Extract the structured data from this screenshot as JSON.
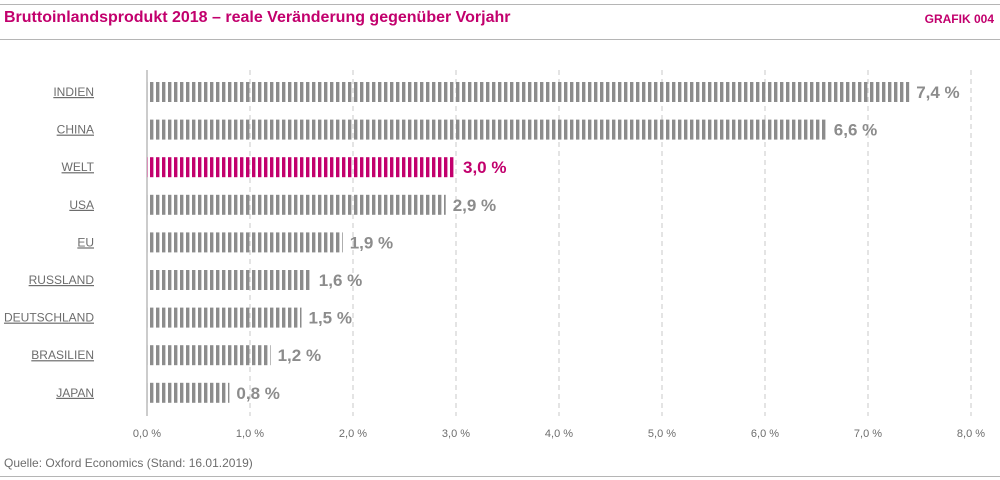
{
  "header": {
    "title": "Bruttoinlandsprodukt 2018 – reale Veränderung gegenüber Vorjahr",
    "graphic_label": "GRAFIK 004"
  },
  "footer": {
    "source": "Quelle: Oxford Economics (Stand: 16.01.2019)"
  },
  "colors": {
    "bar_default": "#8c8c8c",
    "bar_highlight": "#c2006d",
    "label_default": "#8c8c8c",
    "label_highlight": "#c2006d",
    "category_text": "#6d6d6d",
    "grid": "#c8c8c8"
  },
  "chart_data": {
    "type": "bar",
    "orientation": "horizontal",
    "categories": [
      "INDIEN",
      "CHINA",
      "WELT",
      "USA",
      "EU",
      "RUSSLAND",
      "DEUTSCHLAND",
      "BRASILIEN",
      "JAPAN"
    ],
    "values": [
      7.4,
      6.6,
      3.0,
      2.9,
      1.9,
      1.6,
      1.5,
      1.2,
      0.8
    ],
    "value_labels": [
      "7,4 %",
      "6,6 %",
      "3,0 %",
      "2,9 %",
      "1,9 %",
      "1,6 %",
      "1,5 %",
      "1,2 %",
      "0,8 %"
    ],
    "highlight": "WELT",
    "xlim": [
      0,
      8
    ],
    "xticks": [
      0,
      1,
      2,
      3,
      4,
      5,
      6,
      7,
      8
    ],
    "xtick_labels": [
      "0,0 %",
      "1,0 %",
      "2,0 %",
      "3,0 %",
      "4,0 %",
      "5,0 %",
      "6,0 %",
      "7,0 %",
      "8,0 %"
    ],
    "grid": true
  }
}
